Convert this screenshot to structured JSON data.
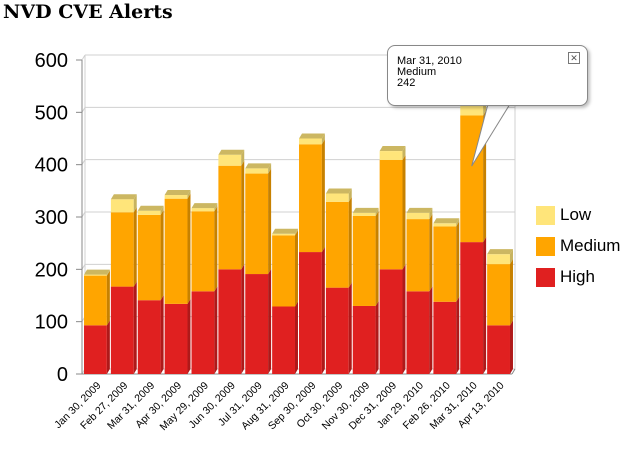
{
  "title": "NVD CVE Alerts",
  "colors": {
    "High": "#e02020",
    "Medium": "#ffa500",
    "Low": "#ffe57a",
    "grid": "#d0d0d0",
    "axis": "#888888"
  },
  "legend": [
    {
      "label": "Low",
      "key": "Low"
    },
    {
      "label": "Medium",
      "key": "Medium"
    },
    {
      "label": "High",
      "key": "High"
    }
  ],
  "tooltip": {
    "date": "Mar 31, 2010",
    "series": "Medium",
    "value": "242",
    "close_icon": "close-icon"
  },
  "chart_data": {
    "type": "bar",
    "stacked": true,
    "title": "NVD CVE Alerts",
    "ylim": [
      0,
      600
    ],
    "yticks": [
      0,
      100,
      200,
      300,
      400,
      500,
      600
    ],
    "grid": true,
    "legend_position": "right",
    "categories": [
      "Jan 30, 2009",
      "Feb 27, 2009",
      "Mar 31, 2009",
      "Apr 30, 2009",
      "May 29, 2009",
      "Jun 30, 2009",
      "Jul 31, 2009",
      "Aug 31, 2009",
      "Sep 30, 2009",
      "Oct 30, 2009",
      "Nov 30, 2009",
      "Dec 31, 2009",
      "Jan 29, 2010",
      "Feb 26, 2010",
      "Mar 31, 2010",
      "Apr 13, 2010"
    ],
    "series": [
      {
        "name": "High",
        "values": [
          93,
          167,
          141,
          134,
          158,
          200,
          191,
          129,
          233,
          165,
          130,
          200,
          158,
          138,
          252,
          93
        ]
      },
      {
        "name": "Medium",
        "values": [
          95,
          142,
          163,
          201,
          153,
          198,
          192,
          136,
          206,
          164,
          172,
          209,
          138,
          144,
          242,
          117
        ]
      },
      {
        "name": "Low",
        "values": [
          2,
          25,
          8,
          7,
          6,
          21,
          10,
          3,
          11,
          16,
          6,
          17,
          12,
          6,
          18,
          19
        ]
      }
    ]
  }
}
